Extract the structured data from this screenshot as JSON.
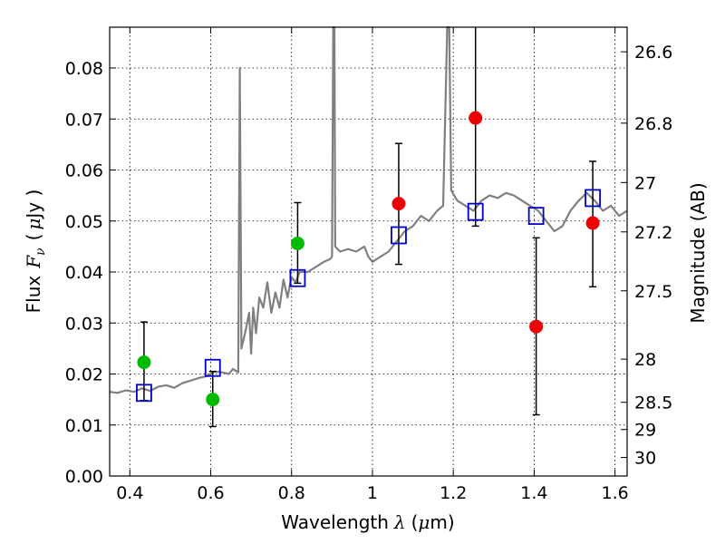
{
  "chart_data": {
    "type": "scatter",
    "xlabel": "Wavelength",
    "xlabel_symbol": "λ",
    "xlabel_unit_open": "(",
    "xlabel_unit_mu": "μ",
    "xlabel_unit_rest": "m)",
    "ylabel": "Flux",
    "ylabel_symbol_base": "F",
    "ylabel_symbol_sub": "ν",
    "ylabel_unit_open": "(",
    "ylabel_unit_mu": "μ",
    "ylabel_unit_rest": "Jy )",
    "y2label": "Magnitude (AB)",
    "xlim": [
      0.35,
      1.63
    ],
    "ylim": [
      0.0,
      0.088
    ],
    "grid": true,
    "x_ticks": [
      {
        "value": 0.4,
        "label": "0.4"
      },
      {
        "value": 0.6,
        "label": "0.6"
      },
      {
        "value": 0.8,
        "label": "0.8"
      },
      {
        "value": 1.0,
        "label": "1"
      },
      {
        "value": 1.2,
        "label": "1.2"
      },
      {
        "value": 1.4,
        "label": "1.4"
      },
      {
        "value": 1.6,
        "label": "1.6"
      }
    ],
    "y_ticks": [
      {
        "value": 0.0,
        "label": "0.00"
      },
      {
        "value": 0.01,
        "label": "0.01"
      },
      {
        "value": 0.02,
        "label": "0.02"
      },
      {
        "value": 0.03,
        "label": "0.03"
      },
      {
        "value": 0.04,
        "label": "0.04"
      },
      {
        "value": 0.05,
        "label": "0.05"
      },
      {
        "value": 0.06,
        "label": "0.06"
      },
      {
        "value": 0.07,
        "label": "0.07"
      },
      {
        "value": 0.08,
        "label": "0.08"
      }
    ],
    "y2_ticks": [
      {
        "label": "26.6",
        "magnitude": 26.6
      },
      {
        "label": "26.8",
        "magnitude": 26.8
      },
      {
        "label": "27",
        "magnitude": 27.0
      },
      {
        "label": "27.2",
        "magnitude": 27.2
      },
      {
        "label": "27.5",
        "magnitude": 27.5
      },
      {
        "label": "28",
        "magnitude": 28.0
      },
      {
        "label": "28.5",
        "magnitude": 28.5
      },
      {
        "label": "29",
        "magnitude": 29.0
      },
      {
        "label": "30",
        "magnitude": 30.0
      }
    ],
    "series": [
      {
        "kind": "spectrum",
        "color": "#808080",
        "points": [
          [
            0.35,
            0.0165
          ],
          [
            0.37,
            0.0163
          ],
          [
            0.39,
            0.0168
          ],
          [
            0.41,
            0.0165
          ],
          [
            0.43,
            0.0172
          ],
          [
            0.45,
            0.0167
          ],
          [
            0.47,
            0.0175
          ],
          [
            0.49,
            0.0178
          ],
          [
            0.51,
            0.0173
          ],
          [
            0.53,
            0.0182
          ],
          [
            0.55,
            0.0187
          ],
          [
            0.57,
            0.0192
          ],
          [
            0.59,
            0.0196
          ],
          [
            0.61,
            0.0205
          ],
          [
            0.63,
            0.0203
          ],
          [
            0.645,
            0.02
          ],
          [
            0.655,
            0.021
          ],
          [
            0.668,
            0.0203
          ],
          [
            0.672,
            0.08
          ],
          [
            0.676,
            0.025
          ],
          [
            0.685,
            0.028
          ],
          [
            0.695,
            0.032
          ],
          [
            0.7,
            0.024
          ],
          [
            0.705,
            0.033
          ],
          [
            0.712,
            0.028
          ],
          [
            0.72,
            0.035
          ],
          [
            0.73,
            0.033
          ],
          [
            0.74,
            0.038
          ],
          [
            0.75,
            0.032
          ],
          [
            0.76,
            0.036
          ],
          [
            0.77,
            0.033
          ],
          [
            0.78,
            0.0385
          ],
          [
            0.79,
            0.035
          ],
          [
            0.8,
            0.039
          ],
          [
            0.81,
            0.038
          ],
          [
            0.82,
            0.04
          ],
          [
            0.84,
            0.04
          ],
          [
            0.86,
            0.041
          ],
          [
            0.88,
            0.042
          ],
          [
            0.895,
            0.0425
          ],
          [
            0.9,
            0.043
          ],
          [
            0.903,
            0.088
          ],
          [
            0.906,
            0.088
          ],
          [
            0.908,
            0.045
          ],
          [
            0.92,
            0.044
          ],
          [
            0.94,
            0.0445
          ],
          [
            0.96,
            0.044
          ],
          [
            0.98,
            0.045
          ],
          [
            0.99,
            0.043
          ],
          [
            1.0,
            0.042
          ],
          [
            1.02,
            0.043
          ],
          [
            1.04,
            0.044
          ],
          [
            1.06,
            0.046
          ],
          [
            1.08,
            0.048
          ],
          [
            1.1,
            0.049
          ],
          [
            1.12,
            0.051
          ],
          [
            1.14,
            0.05
          ],
          [
            1.16,
            0.052
          ],
          [
            1.175,
            0.053
          ],
          [
            1.185,
            0.088
          ],
          [
            1.19,
            0.088
          ],
          [
            1.195,
            0.056
          ],
          [
            1.21,
            0.054
          ],
          [
            1.23,
            0.053
          ],
          [
            1.25,
            0.052
          ],
          [
            1.27,
            0.054
          ],
          [
            1.29,
            0.055
          ],
          [
            1.31,
            0.0545
          ],
          [
            1.33,
            0.0555
          ],
          [
            1.35,
            0.055
          ],
          [
            1.37,
            0.054
          ],
          [
            1.39,
            0.053
          ],
          [
            1.41,
            0.052
          ],
          [
            1.43,
            0.05
          ],
          [
            1.45,
            0.048
          ],
          [
            1.47,
            0.049
          ],
          [
            1.49,
            0.052
          ],
          [
            1.51,
            0.054
          ],
          [
            1.53,
            0.0555
          ],
          [
            1.55,
            0.054
          ],
          [
            1.57,
            0.052
          ],
          [
            1.59,
            0.053
          ],
          [
            1.61,
            0.051
          ],
          [
            1.63,
            0.052
          ]
        ]
      },
      {
        "kind": "model-squares",
        "color": "#0000cc",
        "points": [
          [
            0.435,
            0.0163
          ],
          [
            0.605,
            0.0212
          ],
          [
            0.815,
            0.0388
          ],
          [
            1.065,
            0.0472
          ],
          [
            1.255,
            0.0518
          ],
          [
            1.405,
            0.051
          ],
          [
            1.545,
            0.0545
          ]
        ]
      },
      {
        "kind": "observed-green",
        "color": "#00bb00",
        "points": [
          {
            "x": 0.435,
            "y": 0.0223,
            "lo": 0.0148,
            "hi": 0.0302
          },
          {
            "x": 0.605,
            "y": 0.015,
            "lo": 0.0097,
            "hi": 0.0205
          },
          {
            "x": 0.815,
            "y": 0.0456,
            "lo": 0.0378,
            "hi": 0.0536
          }
        ]
      },
      {
        "kind": "observed-red",
        "color": "#ee0000",
        "points": [
          {
            "x": 1.065,
            "y": 0.0534,
            "lo": 0.0415,
            "hi": 0.0652
          },
          {
            "x": 1.255,
            "y": 0.0702,
            "lo": 0.049,
            "hi": 0.088
          },
          {
            "x": 1.405,
            "y": 0.0293,
            "lo": 0.012,
            "hi": 0.0467
          },
          {
            "x": 1.545,
            "y": 0.0496,
            "lo": 0.0371,
            "hi": 0.0617
          }
        ]
      }
    ]
  }
}
